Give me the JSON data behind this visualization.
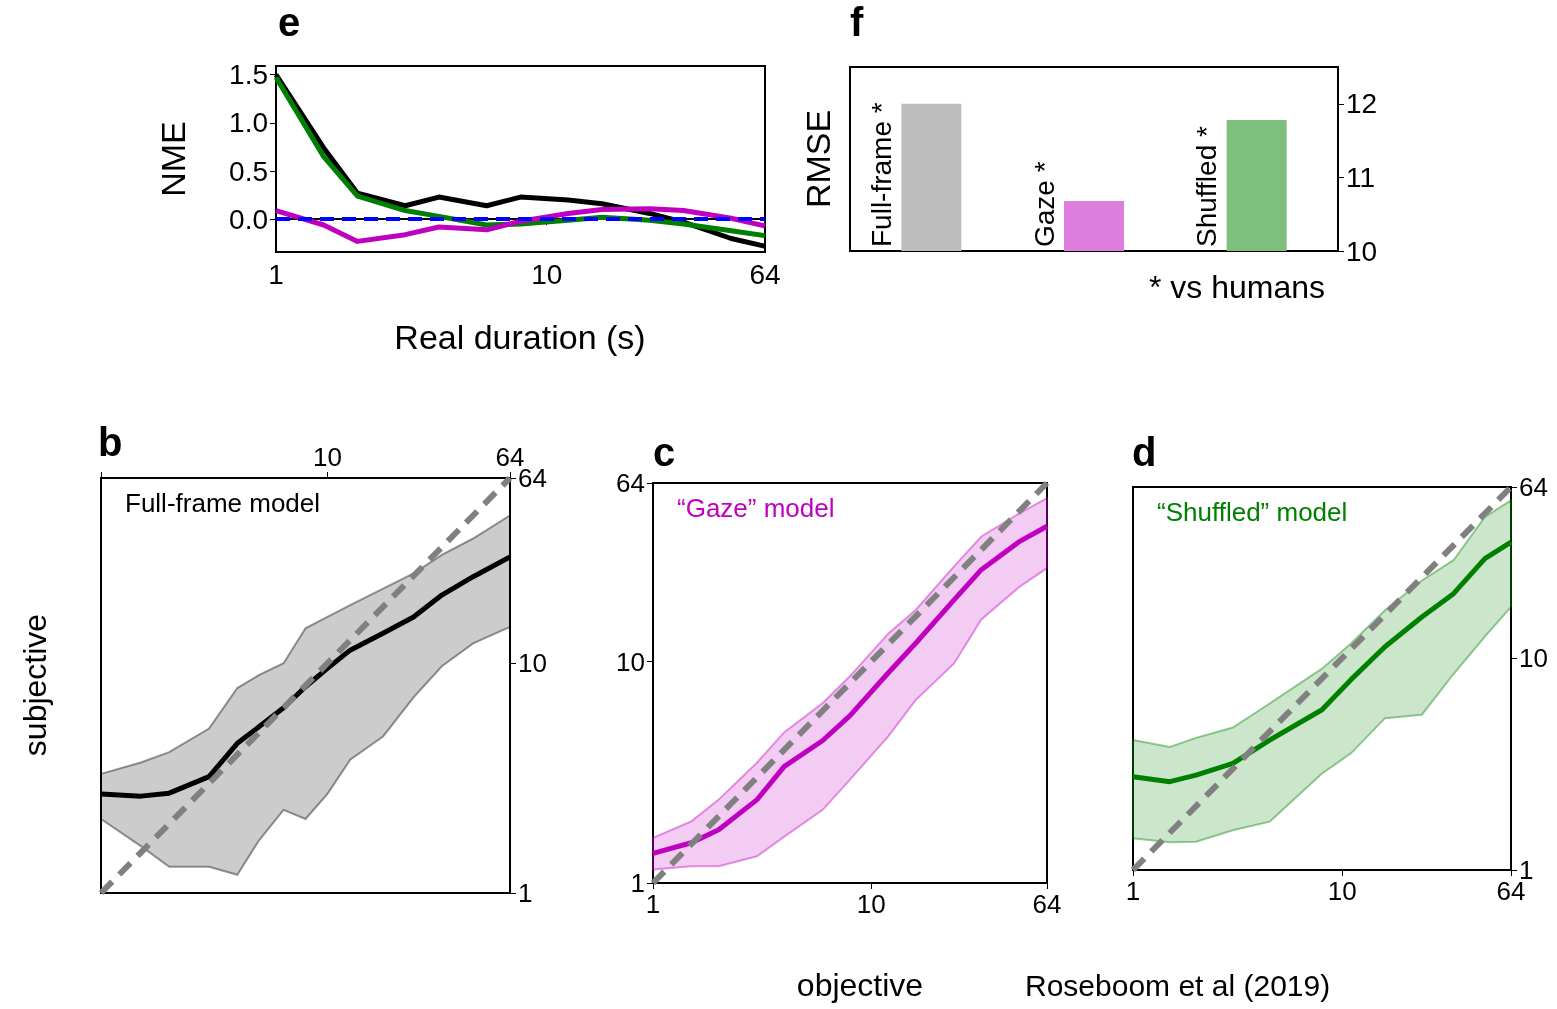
{
  "chart_data": [
    {
      "type": "line",
      "title": "e",
      "xlabel": "Real duration (s)",
      "ylabel": "NME",
      "log": "x",
      "xlim": [
        1,
        64
      ],
      "xticks": [
        1,
        10,
        64
      ],
      "ylim": [
        -0.34,
        1.59
      ],
      "yticks": [
        {
          "value": 0,
          "label": "0.0"
        },
        0.5,
        {
          "value": 1,
          "label": "1.0"
        },
        1.5
      ],
      "ref_lines": [
        {
          "axis": "y",
          "value": 0,
          "color": "#0000ff",
          "line_style": "dashed"
        }
      ],
      "series": [
        {
          "color": "#000000",
          "x": [
            1,
            1.5,
            2,
            3,
            4,
            6,
            8,
            12,
            16,
            24,
            32,
            48,
            64
          ],
          "values": [
            1.5,
            0.74,
            0.27,
            0.14,
            0.23,
            0.14,
            0.23,
            0.2,
            0.16,
            0.06,
            -0.03,
            -0.2,
            -0.28
          ]
        },
        {
          "color": "#008000",
          "x": [
            1,
            1.5,
            2,
            3,
            4,
            6,
            8,
            12,
            16,
            24,
            32,
            48,
            64
          ],
          "values": [
            1.47,
            0.65,
            0.24,
            0.09,
            0.03,
            -0.06,
            -0.05,
            -0.01,
            0.02,
            -0.01,
            -0.05,
            -0.12,
            -0.17
          ]
        },
        {
          "color": "#c000c0",
          "x": [
            1,
            1.5,
            2,
            3,
            4,
            6,
            8,
            12,
            16,
            24,
            32,
            48,
            64
          ],
          "values": [
            0.09,
            -0.06,
            -0.23,
            -0.16,
            -0.08,
            -0.11,
            -0.02,
            0.06,
            0.1,
            0.11,
            0.09,
            0.01,
            -0.07
          ]
        }
      ]
    },
    {
      "type": "bar",
      "title": "f",
      "ylabel": "RMSE",
      "annotations": [
        "* vs humans"
      ],
      "categories": [
        "Full-frame *",
        "Gaze *",
        "Shuffled *"
      ],
      "y2lim": [
        10,
        12.5
      ],
      "y2ticks": [
        10,
        11,
        12
      ],
      "series": [
        {
          "axis": "y2",
          "colors": [
            "#bebebe",
            "#dd7ddd",
            "#7dbf7d"
          ],
          "values": [
            12.0,
            10.68,
            11.78
          ]
        }
      ]
    },
    {
      "type": "line",
      "title": "b",
      "ylabel": "subjective",
      "log": "xy",
      "xlim": [
        1,
        64
      ],
      "xticks": [
        {
          "value": 1,
          "label": null
        },
        10,
        64
      ],
      "ylim": [
        1,
        64
      ],
      "yticks": [
        1,
        10,
        64
      ],
      "series": [
        {
          "name": "Full-frame model",
          "color": "#000000",
          "x": [
            1,
            1.5,
            2,
            3,
            4,
            5,
            6.4,
            8,
            10,
            12.6,
            17.6,
            24,
            32,
            44,
            64
          ],
          "values": [
            2.7,
            2.64,
            2.72,
            3.21,
            4.48,
            5.3,
            6.4,
            7.9,
            9.5,
            11.4,
            13.5,
            15.9,
            19.8,
            23.8,
            29
          ],
          "lower": [
            2.1,
            1.6,
            1.3,
            1.3,
            1.2,
            1.7,
            2.3,
            2.1,
            2.7,
            3.8,
            4.8,
            7.1,
            9.7,
            12.2,
            14.4
          ],
          "upper": [
            3.3,
            3.7,
            4.1,
            5.2,
            7.8,
            8.9,
            10,
            14.2,
            15.9,
            17.9,
            21.1,
            24.6,
            29.6,
            34.9,
            44
          ]
        },
        {
          "color": "#808080",
          "line_style": "dashed",
          "x": [
            1,
            64
          ],
          "values": [
            1,
            64
          ]
        }
      ]
    },
    {
      "type": "line",
      "title": "c",
      "xlabel": "objective",
      "log": "xy",
      "xlim": [
        1,
        64
      ],
      "xticks": [
        1,
        10,
        64
      ],
      "ylim": [
        1,
        64
      ],
      "yticks": [
        1,
        10,
        64
      ],
      "series": [
        {
          "name": "“Gaze” model",
          "color": "#c000c0",
          "x": [
            1,
            1.5,
            2,
            3,
            4,
            6,
            8,
            12,
            16,
            24,
            32,
            48,
            64
          ],
          "values": [
            1.36,
            1.52,
            1.74,
            2.38,
            3.36,
            4.4,
            5.7,
            8.9,
            12.1,
            19,
            26,
            34.9,
            40.8
          ],
          "lower": [
            1.15,
            1.19,
            1.19,
            1.32,
            1.62,
            2.14,
            2.93,
            4.6,
            6.7,
            9.8,
            15.5,
            21.8,
            26.4
          ],
          "upper": [
            1.6,
            1.9,
            2.38,
            3.5,
            4.8,
            6.5,
            8.6,
            13.4,
            17.1,
            26.9,
            36.7,
            46.8,
            54.7
          ]
        },
        {
          "color": "#808080",
          "line_style": "dashed",
          "x": [
            1,
            64
          ],
          "values": [
            1,
            64
          ]
        }
      ]
    },
    {
      "type": "line",
      "title": "d",
      "annotations": [
        "Roseboom et al (2019)"
      ],
      "log": "xy",
      "xlim": [
        1,
        64
      ],
      "xticks": [
        1,
        10,
        64
      ],
      "ylim": [
        1,
        64
      ],
      "yticks": [
        1,
        10,
        64
      ],
      "series": [
        {
          "name": "“Shuffled” model",
          "color": "#008000",
          "x": [
            1,
            1.5,
            2,
            3,
            4.5,
            8,
            11,
            16,
            24,
            34,
            48,
            64
          ],
          "values": [
            2.75,
            2.61,
            2.8,
            3.18,
            4.1,
            5.7,
            7.9,
            11.3,
            15.6,
            20.1,
            29.4,
            35.2
          ],
          "lower": [
            1.41,
            1.35,
            1.36,
            1.54,
            1.69,
            2.85,
            3.55,
            5.2,
            5.4,
            8.4,
            12.6,
            17.4
          ],
          "upper": [
            4.1,
            3.8,
            4.2,
            4.7,
            6.1,
            8.9,
            11.7,
            16.8,
            23.2,
            28.9,
            46.2,
            55.4
          ]
        },
        {
          "color": "#808080",
          "line_style": "dashed",
          "x": [
            1,
            64
          ],
          "values": [
            1,
            64
          ]
        }
      ]
    }
  ]
}
